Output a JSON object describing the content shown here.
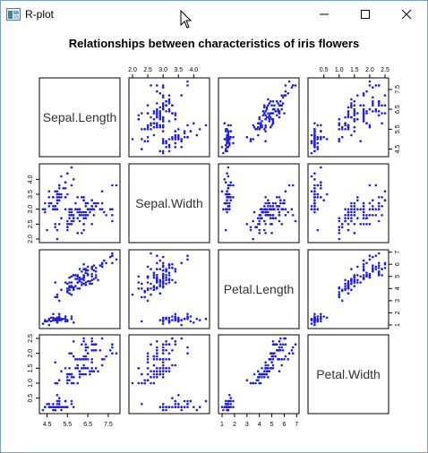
{
  "window": {
    "title": "R-plot",
    "icons": {
      "app": "r-plot-app-icon",
      "minimize": "minimize-icon",
      "maximize": "maximize-icon",
      "close": "close-icon",
      "cursor": "mouse-pointer-icon"
    }
  },
  "colors": {
    "points": "#1f1fe0",
    "axis": "#000000",
    "frame": "#000000"
  },
  "chart_data": {
    "type": "scatter",
    "title": "Relationships between characteristics of iris flowers",
    "variables": [
      "Sepal.Length",
      "Sepal.Width",
      "Petal.Length",
      "Petal.Width"
    ],
    "axis_ticks": {
      "Sepal.Length": [
        "4.5",
        "5.5",
        "6.5",
        "7.5"
      ],
      "Sepal.Width": [
        "2.0",
        "2.5",
        "3.0",
        "3.5",
        "4.0"
      ],
      "Petal.Length": [
        "1",
        "2",
        "3",
        "4",
        "5",
        "6",
        "7"
      ],
      "Petal.Width": [
        "0.5",
        "1.0",
        "1.5",
        "2.0",
        "2.5"
      ]
    },
    "ranges": {
      "Sepal.Length": [
        4.3,
        7.9
      ],
      "Sepal.Width": [
        2.0,
        4.4
      ],
      "Petal.Length": [
        1.0,
        6.9
      ],
      "Petal.Width": [
        0.1,
        2.5
      ]
    },
    "observations": [
      [
        5.1,
        3.5,
        1.4,
        0.2
      ],
      [
        4.9,
        3.0,
        1.4,
        0.2
      ],
      [
        4.7,
        3.2,
        1.3,
        0.2
      ],
      [
        4.6,
        3.1,
        1.5,
        0.2
      ],
      [
        5.0,
        3.6,
        1.4,
        0.2
      ],
      [
        5.4,
        3.9,
        1.7,
        0.4
      ],
      [
        4.6,
        3.4,
        1.4,
        0.3
      ],
      [
        5.0,
        3.4,
        1.5,
        0.2
      ],
      [
        4.4,
        2.9,
        1.4,
        0.2
      ],
      [
        4.9,
        3.1,
        1.5,
        0.1
      ],
      [
        5.4,
        3.7,
        1.5,
        0.2
      ],
      [
        4.8,
        3.4,
        1.6,
        0.2
      ],
      [
        4.8,
        3.0,
        1.4,
        0.1
      ],
      [
        4.3,
        3.0,
        1.1,
        0.1
      ],
      [
        5.8,
        4.0,
        1.2,
        0.2
      ],
      [
        5.7,
        4.4,
        1.5,
        0.4
      ],
      [
        5.4,
        3.9,
        1.3,
        0.4
      ],
      [
        5.1,
        3.5,
        1.4,
        0.3
      ],
      [
        5.7,
        3.8,
        1.7,
        0.3
      ],
      [
        5.1,
        3.8,
        1.5,
        0.3
      ],
      [
        5.4,
        3.4,
        1.7,
        0.2
      ],
      [
        5.1,
        3.7,
        1.5,
        0.4
      ],
      [
        4.6,
        3.6,
        1.0,
        0.2
      ],
      [
        5.1,
        3.3,
        1.7,
        0.5
      ],
      [
        4.8,
        3.4,
        1.9,
        0.2
      ],
      [
        5.0,
        3.0,
        1.6,
        0.2
      ],
      [
        5.0,
        3.4,
        1.6,
        0.4
      ],
      [
        5.2,
        3.5,
        1.5,
        0.2
      ],
      [
        5.2,
        3.4,
        1.4,
        0.2
      ],
      [
        4.7,
        3.2,
        1.6,
        0.2
      ],
      [
        4.8,
        3.1,
        1.6,
        0.2
      ],
      [
        5.4,
        3.4,
        1.5,
        0.4
      ],
      [
        5.2,
        4.1,
        1.5,
        0.1
      ],
      [
        5.5,
        4.2,
        1.4,
        0.2
      ],
      [
        4.9,
        3.1,
        1.5,
        0.2
      ],
      [
        5.0,
        3.2,
        1.2,
        0.2
      ],
      [
        5.5,
        3.5,
        1.3,
        0.2
      ],
      [
        4.9,
        3.6,
        1.4,
        0.1
      ],
      [
        4.4,
        3.0,
        1.3,
        0.2
      ],
      [
        5.1,
        3.4,
        1.5,
        0.2
      ],
      [
        5.0,
        3.5,
        1.3,
        0.3
      ],
      [
        4.5,
        2.3,
        1.3,
        0.3
      ],
      [
        4.4,
        3.2,
        1.3,
        0.2
      ],
      [
        5.0,
        3.5,
        1.6,
        0.6
      ],
      [
        5.1,
        3.8,
        1.9,
        0.4
      ],
      [
        4.8,
        3.0,
        1.4,
        0.3
      ],
      [
        5.1,
        3.8,
        1.6,
        0.2
      ],
      [
        4.6,
        3.2,
        1.4,
        0.2
      ],
      [
        5.3,
        3.7,
        1.5,
        0.2
      ],
      [
        5.0,
        3.3,
        1.4,
        0.2
      ],
      [
        7.0,
        3.2,
        4.7,
        1.4
      ],
      [
        6.4,
        3.2,
        4.5,
        1.5
      ],
      [
        6.9,
        3.1,
        4.9,
        1.5
      ],
      [
        5.5,
        2.3,
        4.0,
        1.3
      ],
      [
        6.5,
        2.8,
        4.6,
        1.5
      ],
      [
        5.7,
        2.8,
        4.5,
        1.3
      ],
      [
        6.3,
        3.3,
        4.7,
        1.6
      ],
      [
        4.9,
        2.4,
        3.3,
        1.0
      ],
      [
        6.6,
        2.9,
        4.6,
        1.3
      ],
      [
        5.2,
        2.7,
        3.9,
        1.4
      ],
      [
        5.0,
        2.0,
        3.5,
        1.0
      ],
      [
        5.9,
        3.0,
        4.2,
        1.5
      ],
      [
        6.0,
        2.2,
        4.0,
        1.0
      ],
      [
        6.1,
        2.9,
        4.7,
        1.4
      ],
      [
        5.6,
        2.9,
        3.6,
        1.3
      ],
      [
        6.7,
        3.1,
        4.4,
        1.4
      ],
      [
        5.6,
        3.0,
        4.5,
        1.5
      ],
      [
        5.8,
        2.7,
        4.1,
        1.0
      ],
      [
        6.2,
        2.2,
        4.5,
        1.5
      ],
      [
        5.6,
        2.5,
        3.9,
        1.1
      ],
      [
        5.9,
        3.2,
        4.8,
        1.8
      ],
      [
        6.1,
        2.8,
        4.0,
        1.3
      ],
      [
        6.3,
        2.5,
        4.9,
        1.5
      ],
      [
        6.1,
        2.8,
        4.7,
        1.2
      ],
      [
        6.4,
        2.9,
        4.3,
        1.3
      ],
      [
        6.6,
        3.0,
        4.4,
        1.4
      ],
      [
        6.8,
        2.8,
        4.8,
        1.4
      ],
      [
        6.7,
        3.0,
        5.0,
        1.7
      ],
      [
        6.0,
        2.9,
        4.5,
        1.5
      ],
      [
        5.7,
        2.6,
        3.5,
        1.0
      ],
      [
        5.5,
        2.4,
        3.8,
        1.1
      ],
      [
        5.5,
        2.4,
        3.7,
        1.0
      ],
      [
        5.8,
        2.7,
        3.9,
        1.2
      ],
      [
        6.0,
        2.7,
        5.1,
        1.6
      ],
      [
        5.4,
        3.0,
        4.5,
        1.5
      ],
      [
        6.0,
        3.4,
        4.5,
        1.6
      ],
      [
        6.7,
        3.1,
        4.7,
        1.5
      ],
      [
        6.3,
        2.3,
        4.4,
        1.3
      ],
      [
        5.6,
        3.0,
        4.1,
        1.3
      ],
      [
        5.5,
        2.5,
        4.0,
        1.3
      ],
      [
        5.5,
        2.6,
        4.4,
        1.2
      ],
      [
        6.1,
        3.0,
        4.6,
        1.4
      ],
      [
        5.8,
        2.6,
        4.0,
        1.2
      ],
      [
        5.0,
        2.3,
        3.3,
        1.0
      ],
      [
        5.6,
        2.7,
        4.2,
        1.3
      ],
      [
        5.7,
        3.0,
        4.2,
        1.2
      ],
      [
        5.7,
        2.9,
        4.2,
        1.3
      ],
      [
        6.2,
        2.9,
        4.3,
        1.3
      ],
      [
        5.1,
        2.5,
        3.0,
        1.1
      ],
      [
        5.7,
        2.8,
        4.1,
        1.3
      ],
      [
        6.3,
        3.3,
        6.0,
        2.5
      ],
      [
        5.8,
        2.7,
        5.1,
        1.9
      ],
      [
        7.1,
        3.0,
        5.9,
        2.1
      ],
      [
        6.3,
        2.9,
        5.6,
        1.8
      ],
      [
        6.5,
        3.0,
        5.8,
        2.2
      ],
      [
        7.6,
        3.0,
        6.6,
        2.1
      ],
      [
        4.9,
        2.5,
        4.5,
        1.7
      ],
      [
        7.3,
        2.9,
        6.3,
        1.8
      ],
      [
        6.7,
        2.5,
        5.8,
        1.8
      ],
      [
        7.2,
        3.6,
        6.1,
        2.5
      ],
      [
        6.5,
        3.2,
        5.1,
        2.0
      ],
      [
        6.4,
        2.7,
        5.3,
        1.9
      ],
      [
        6.8,
        3.0,
        5.5,
        2.1
      ],
      [
        5.7,
        2.5,
        5.0,
        2.0
      ],
      [
        5.8,
        2.8,
        5.1,
        2.4
      ],
      [
        6.4,
        3.2,
        5.3,
        2.3
      ],
      [
        6.5,
        3.0,
        5.5,
        1.8
      ],
      [
        7.7,
        3.8,
        6.7,
        2.2
      ],
      [
        7.7,
        2.6,
        6.9,
        2.3
      ],
      [
        6.0,
        2.2,
        5.0,
        1.5
      ],
      [
        6.9,
        3.2,
        5.7,
        2.3
      ],
      [
        5.6,
        2.8,
        4.9,
        2.0
      ],
      [
        7.7,
        2.8,
        6.7,
        2.0
      ],
      [
        6.3,
        2.7,
        4.9,
        1.8
      ],
      [
        6.7,
        3.3,
        5.7,
        2.1
      ],
      [
        7.2,
        3.2,
        6.0,
        1.8
      ],
      [
        6.2,
        2.8,
        4.8,
        1.8
      ],
      [
        6.1,
        3.0,
        4.9,
        1.8
      ],
      [
        6.4,
        2.8,
        5.6,
        2.1
      ],
      [
        7.2,
        3.0,
        5.8,
        1.6
      ],
      [
        7.4,
        2.8,
        6.1,
        1.9
      ],
      [
        7.9,
        3.8,
        6.4,
        2.0
      ],
      [
        6.4,
        2.8,
        5.6,
        2.2
      ],
      [
        6.3,
        2.8,
        5.1,
        1.5
      ],
      [
        6.1,
        2.6,
        5.6,
        1.4
      ],
      [
        7.7,
        3.0,
        6.1,
        2.3
      ],
      [
        6.3,
        3.4,
        5.6,
        2.4
      ],
      [
        6.4,
        3.1,
        5.5,
        1.8
      ],
      [
        6.0,
        3.0,
        4.8,
        1.8
      ],
      [
        6.9,
        3.1,
        5.4,
        2.1
      ],
      [
        6.7,
        3.1,
        5.6,
        2.4
      ],
      [
        6.9,
        3.1,
        5.1,
        2.3
      ],
      [
        5.8,
        2.7,
        5.1,
        1.9
      ],
      [
        6.8,
        3.2,
        5.9,
        2.3
      ],
      [
        6.7,
        3.3,
        5.7,
        2.5
      ],
      [
        6.7,
        3.0,
        5.2,
        2.3
      ],
      [
        6.3,
        2.5,
        5.0,
        1.9
      ],
      [
        6.5,
        3.0,
        5.2,
        2.0
      ],
      [
        6.2,
        3.4,
        5.4,
        2.3
      ],
      [
        5.9,
        3.0,
        5.1,
        1.8
      ]
    ]
  }
}
